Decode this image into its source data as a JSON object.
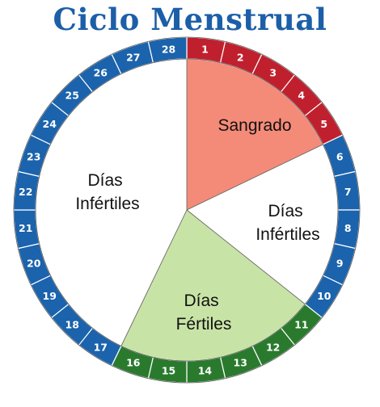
{
  "title": "Ciclo Menstrual",
  "colors": {
    "bleeding_ring": "#c0202e",
    "fertile_ring": "#2a7a2e",
    "infertile_ring": "#1b63ac",
    "bleeding_fill": "#f48b78",
    "fertile_fill": "#c8e3a6",
    "infertile_fill": "#ffffff"
  },
  "total_days": 28,
  "days": [
    {
      "label": "1",
      "phase": "bleeding"
    },
    {
      "label": "2",
      "phase": "bleeding"
    },
    {
      "label": "3",
      "phase": "bleeding"
    },
    {
      "label": "4",
      "phase": "bleeding"
    },
    {
      "label": "5",
      "phase": "bleeding"
    },
    {
      "label": "6",
      "phase": "infertile"
    },
    {
      "label": "7",
      "phase": "infertile"
    },
    {
      "label": "8",
      "phase": "infertile"
    },
    {
      "label": "9",
      "phase": "infertile"
    },
    {
      "label": "10",
      "phase": "infertile"
    },
    {
      "label": "11",
      "phase": "fertile"
    },
    {
      "label": "12",
      "phase": "fertile"
    },
    {
      "label": "13",
      "phase": "fertile"
    },
    {
      "label": "14",
      "phase": "fertile"
    },
    {
      "label": "15",
      "phase": "fertile"
    },
    {
      "label": "16",
      "phase": "fertile"
    },
    {
      "label": "17",
      "phase": "infertile"
    },
    {
      "label": "18",
      "phase": "infertile"
    },
    {
      "label": "19",
      "phase": "infertile"
    },
    {
      "label": "20",
      "phase": "infertile"
    },
    {
      "label": "21",
      "phase": "infertile"
    },
    {
      "label": "22",
      "phase": "infertile"
    },
    {
      "label": "23",
      "phase": "infertile"
    },
    {
      "label": "24",
      "phase": "infertile"
    },
    {
      "label": "25",
      "phase": "infertile"
    },
    {
      "label": "26",
      "phase": "infertile"
    },
    {
      "label": "27",
      "phase": "infertile"
    },
    {
      "label": "28",
      "phase": "infertile"
    }
  ],
  "regions": {
    "bleeding": {
      "line1": "Sangrado",
      "line2": ""
    },
    "infertile_after": {
      "line1": "Días",
      "line2": "Infértiles"
    },
    "fertile": {
      "line1": "Días",
      "line2": "Fértiles"
    },
    "infertile_before": {
      "line1": "Días",
      "line2": "Infértiles"
    }
  }
}
